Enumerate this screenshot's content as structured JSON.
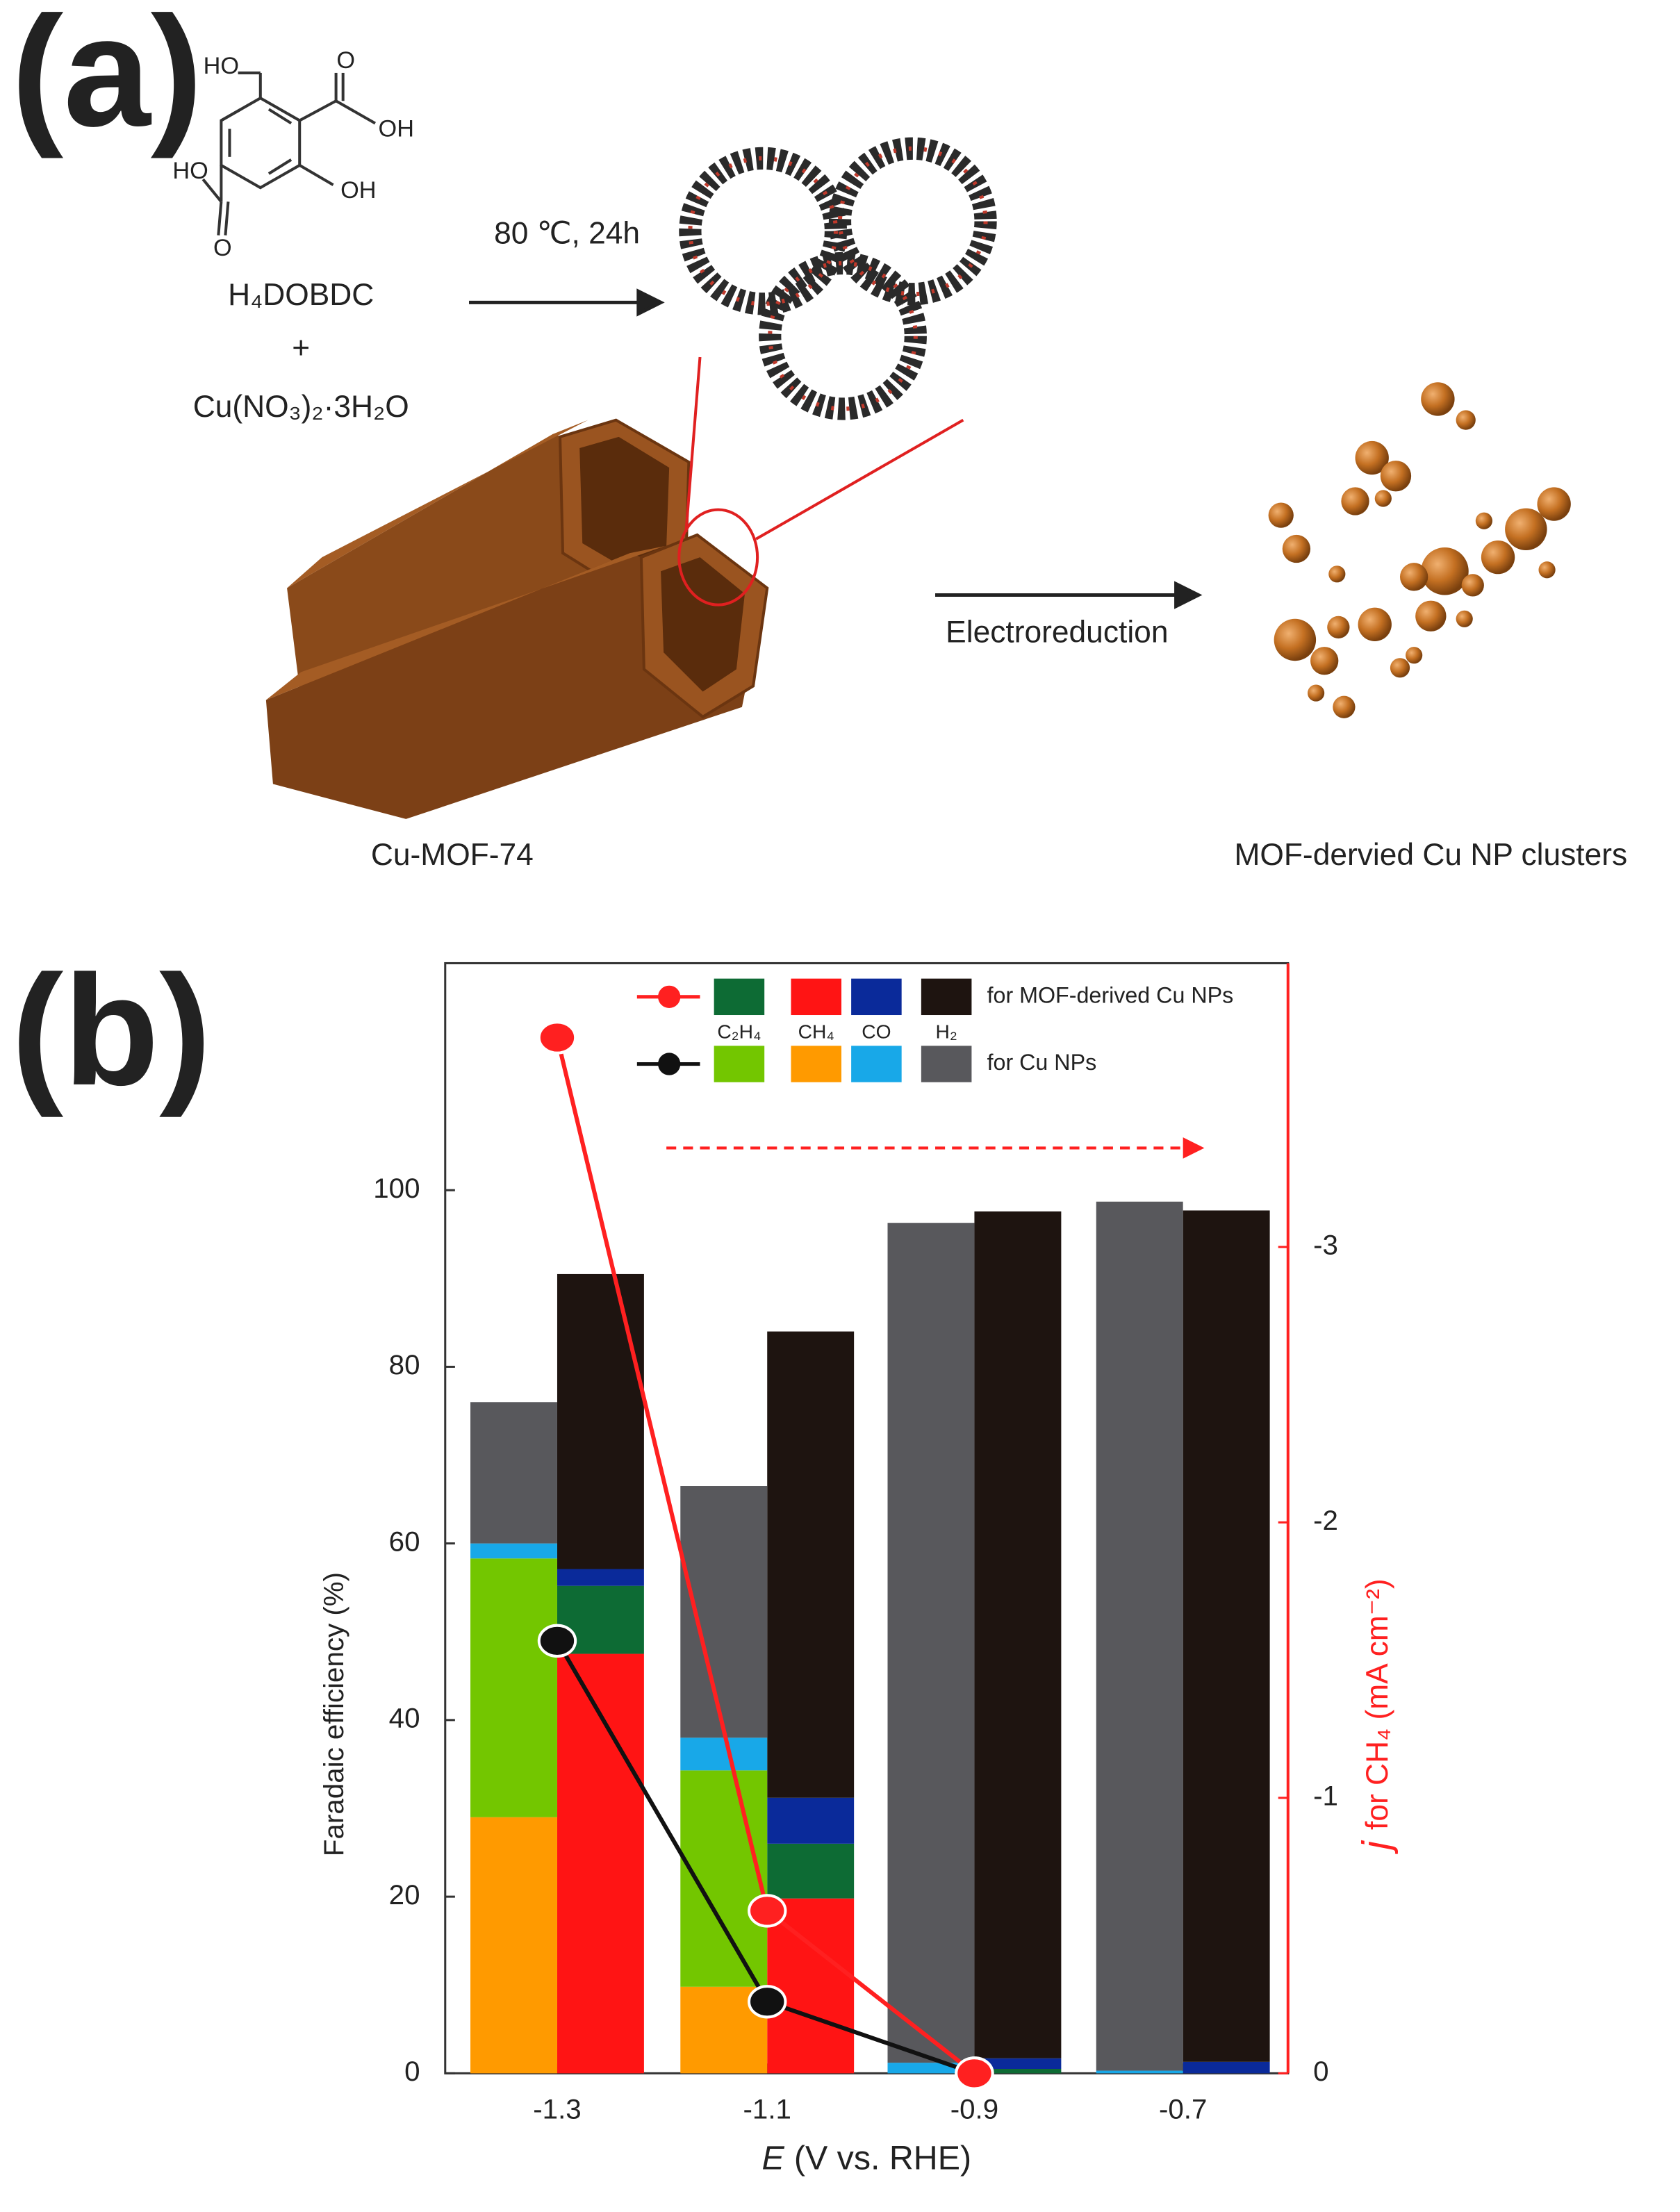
{
  "panel_a": {
    "label": "(a)",
    "atoms": [
      "HO",
      "O",
      "OH",
      "HO",
      "OH",
      "O"
    ],
    "reagent1": "H₄DOBDC",
    "plus": "+",
    "reagent2": "Cu(NO₃)₂·3H₂O",
    "conditions": "80 ℃, 24h",
    "mof_label": "Cu-MOF-74",
    "process": "Electroreduction",
    "product_label": "MOF-dervied Cu NP clusters"
  },
  "panel_b_label": "(b)",
  "chart_data": {
    "type": "bar",
    "x_label_italic": "E",
    "x_label": "(V vs. RHE)",
    "y_label": "Faradaic efficiency (%)",
    "y2_label_italic": "j",
    "y2_label": "for CH₄ (mA cm⁻²)",
    "categories": [
      "-1.3",
      "-1.1",
      "-0.9",
      "-0.7"
    ],
    "ylim": [
      0,
      125.7
    ],
    "yticks": [
      0,
      20,
      40,
      60,
      80,
      100
    ],
    "y2lim": [
      0,
      -4.03
    ],
    "y2ticks": [
      0,
      -1,
      -2,
      -3
    ],
    "y2_color": "#ff2020",
    "products": [
      "C₂H₄",
      "CH₄",
      "CO",
      "H₂"
    ],
    "series": [
      {
        "name": "for MOF-derived Cu NPs",
        "color": "#ff2020",
        "bar_colors": [
          "#0d6b34",
          "#ff1414",
          "#0a2a9a",
          "#1e1410"
        ],
        "values": [
          [
            7.7,
            6.2,
            0.5,
            0
          ],
          [
            47.5,
            19.8,
            0,
            0
          ],
          [
            1.9,
            5.2,
            1.2,
            1.3
          ],
          [
            33.4,
            52.8,
            95.9,
            96.4
          ]
        ],
        "j": [
          -3.76,
          -0.59,
          0,
          null
        ]
      },
      {
        "name": "for Cu NPs",
        "color": "#111111",
        "bar_colors": [
          "#73c600",
          "#ff9a00",
          "#18a8e8",
          "#58585c"
        ],
        "values": [
          [
            29.3,
            24.5,
            0,
            0
          ],
          [
            29,
            9.8,
            0,
            0
          ],
          [
            1.7,
            3.7,
            1.2,
            0.3
          ],
          [
            16,
            28.5,
            95.1,
            98.4
          ]
        ],
        "j": [
          -1.57,
          -0.26,
          0,
          null
        ]
      }
    ]
  }
}
